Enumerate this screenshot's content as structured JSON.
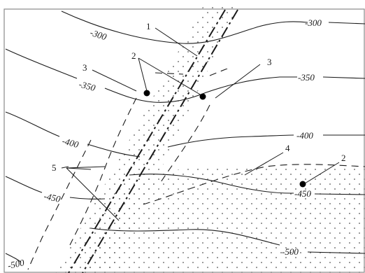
{
  "contour_labels": {
    "c300_left": "-300",
    "c300_right": "-300",
    "c350_left": "-350",
    "c350_right": "-350",
    "c400_left": "-400",
    "c400_right": "-400",
    "c450_left": "-450",
    "c450_right": "-450",
    "c500_left": "-500",
    "c500_right": "-500"
  },
  "callouts": {
    "fault_line": "1",
    "wells": "2",
    "well_right": "2",
    "pinchout_left": "3",
    "pinchout_right": "3",
    "boundary": "4",
    "minor_faults": "5"
  },
  "colors": {
    "line": "#1a1a1a",
    "frame": "#8a8a8a",
    "stipple": "#555555"
  }
}
